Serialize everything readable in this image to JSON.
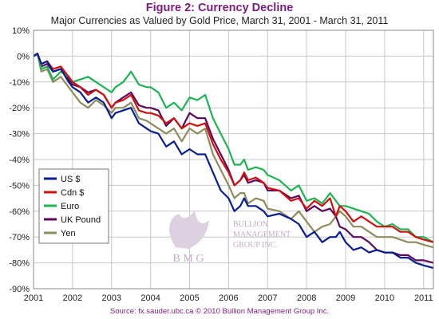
{
  "chart_data": {
    "type": "line",
    "title": "Figure 2: Currency Decline",
    "subtitle": "Major Currencies as Valued by Gold Price, March 31, 2001 - March 31, 2011",
    "xlabel": "",
    "ylabel": "",
    "x_ticks": [
      "2001",
      "2002",
      "2003",
      "2004",
      "2005",
      "2006",
      "2007",
      "2008",
      "2009",
      "2010",
      "2011"
    ],
    "y_ticks": [
      "10%",
      "0%",
      "-10%",
      "-20%",
      "-30%",
      "-40%",
      "-50%",
      "-60%",
      "-70%",
      "-80%",
      "-90%"
    ],
    "xlim": [
      2001.0,
      2011.25
    ],
    "ylim": [
      -90,
      10
    ],
    "grid": true,
    "legend_position": "left-middle",
    "series": [
      {
        "name": "US $",
        "color": "#0a1f8f",
        "x": [
          2001.0,
          2001.1,
          2001.2,
          2001.35,
          2001.5,
          2001.7,
          2001.9,
          2002.0,
          2002.2,
          2002.4,
          2002.6,
          2002.8,
          2003.0,
          2003.1,
          2003.3,
          2003.5,
          2003.7,
          2003.9,
          2004.0,
          2004.2,
          2004.4,
          2004.6,
          2004.8,
          2005.0,
          2005.2,
          2005.4,
          2005.6,
          2005.8,
          2006.0,
          2006.15,
          2006.3,
          2006.4,
          2006.5,
          2006.7,
          2006.9,
          2007.0,
          2007.3,
          2007.6,
          2007.8,
          2008.0,
          2008.2,
          2008.4,
          2008.6,
          2008.75,
          2008.85,
          2009.0,
          2009.2,
          2009.4,
          2009.6,
          2009.8,
          2010.0,
          2010.2,
          2010.4,
          2010.6,
          2010.8,
          2011.0,
          2011.25
        ],
        "values": [
          0,
          1,
          -3,
          -2,
          -6,
          -5,
          -10,
          -12,
          -14,
          -18,
          -16,
          -18,
          -24,
          -22,
          -21,
          -20,
          -26,
          -28,
          -29,
          -30,
          -35,
          -33,
          -38,
          -36,
          -38,
          -38,
          -45,
          -52,
          -55,
          -60,
          -58,
          -55,
          -58,
          -58,
          -60,
          -62,
          -61,
          -63,
          -65,
          -70,
          -68,
          -72,
          -70,
          -70,
          -68,
          -72,
          -75,
          -74,
          -76,
          -75,
          -76,
          -76,
          -78,
          -78,
          -80,
          -81,
          -82
        ]
      },
      {
        "name": "Cdn $",
        "color": "#d01010",
        "x": [
          2001.0,
          2001.1,
          2001.2,
          2001.35,
          2001.5,
          2001.7,
          2001.9,
          2002.0,
          2002.2,
          2002.4,
          2002.6,
          2002.8,
          2003.0,
          2003.1,
          2003.3,
          2003.5,
          2003.7,
          2003.9,
          2004.0,
          2004.2,
          2004.4,
          2004.6,
          2004.8,
          2005.0,
          2005.2,
          2005.4,
          2005.6,
          2005.8,
          2006.0,
          2006.15,
          2006.3,
          2006.4,
          2006.5,
          2006.7,
          2006.9,
          2007.0,
          2007.3,
          2007.6,
          2007.8,
          2008.0,
          2008.2,
          2008.4,
          2008.6,
          2008.75,
          2008.85,
          2009.0,
          2009.2,
          2009.4,
          2009.6,
          2009.8,
          2010.0,
          2010.2,
          2010.4,
          2010.6,
          2010.8,
          2011.0,
          2011.25
        ],
        "values": [
          0,
          1,
          -3,
          -2,
          -5,
          -4,
          -8,
          -10,
          -12,
          -15,
          -13,
          -15,
          -20,
          -18,
          -17,
          -15,
          -21,
          -22,
          -22,
          -23,
          -26,
          -24,
          -28,
          -26,
          -27,
          -26,
          -34,
          -40,
          -45,
          -50,
          -48,
          -45,
          -48,
          -47,
          -49,
          -51,
          -52,
          -56,
          -55,
          -59,
          -56,
          -58,
          -55,
          -62,
          -58,
          -60,
          -64,
          -62,
          -64,
          -66,
          -66,
          -66,
          -68,
          -68,
          -70,
          -71,
          -72
        ]
      },
      {
        "name": "Euro",
        "color": "#1eb454",
        "x": [
          2001.0,
          2001.1,
          2001.2,
          2001.35,
          2001.5,
          2001.7,
          2001.9,
          2002.0,
          2002.2,
          2002.4,
          2002.6,
          2002.8,
          2003.0,
          2003.1,
          2003.3,
          2003.5,
          2003.7,
          2003.9,
          2004.0,
          2004.2,
          2004.4,
          2004.6,
          2004.8,
          2005.0,
          2005.2,
          2005.4,
          2005.6,
          2005.8,
          2006.0,
          2006.15,
          2006.3,
          2006.4,
          2006.5,
          2006.7,
          2006.9,
          2007.0,
          2007.3,
          2007.6,
          2007.8,
          2008.0,
          2008.2,
          2008.4,
          2008.6,
          2008.75,
          2008.85,
          2009.0,
          2009.2,
          2009.4,
          2009.6,
          2009.8,
          2010.0,
          2010.2,
          2010.4,
          2010.6,
          2010.8,
          2011.0,
          2011.25
        ],
        "values": [
          0,
          1,
          -5,
          -4,
          -9,
          -6,
          -8,
          -10,
          -9,
          -8,
          -10,
          -12,
          -14,
          -12,
          -10,
          -6,
          -11,
          -12,
          -12,
          -14,
          -20,
          -18,
          -21,
          -16,
          -17,
          -15,
          -24,
          -30,
          -36,
          -42,
          -42,
          -40,
          -44,
          -43,
          -44,
          -46,
          -48,
          -52,
          -50,
          -56,
          -55,
          -57,
          -53,
          -56,
          -58,
          -58,
          -59,
          -60,
          -61,
          -64,
          -66,
          -65,
          -67,
          -67,
          -70,
          -70,
          -72
        ]
      },
      {
        "name": "UK Pound",
        "color": "#5c0a5e",
        "x": [
          2001.0,
          2001.1,
          2001.2,
          2001.35,
          2001.5,
          2001.7,
          2001.9,
          2002.0,
          2002.2,
          2002.4,
          2002.6,
          2002.8,
          2003.0,
          2003.1,
          2003.3,
          2003.5,
          2003.7,
          2003.9,
          2004.0,
          2004.2,
          2004.4,
          2004.6,
          2004.8,
          2005.0,
          2005.2,
          2005.4,
          2005.6,
          2005.8,
          2006.0,
          2006.15,
          2006.3,
          2006.4,
          2006.5,
          2006.7,
          2006.9,
          2007.0,
          2007.3,
          2007.6,
          2007.8,
          2008.0,
          2008.2,
          2008.4,
          2008.6,
          2008.75,
          2008.85,
          2009.0,
          2009.2,
          2009.4,
          2009.6,
          2009.8,
          2010.0,
          2010.2,
          2010.4,
          2010.6,
          2010.8,
          2011.0,
          2011.25
        ],
        "values": [
          0,
          1,
          -4,
          -3,
          -6,
          -5,
          -9,
          -11,
          -12,
          -14,
          -13,
          -15,
          -20,
          -18,
          -16,
          -14,
          -19,
          -20,
          -20,
          -21,
          -27,
          -24,
          -28,
          -22,
          -24,
          -24,
          -32,
          -38,
          -44,
          -50,
          -48,
          -46,
          -49,
          -48,
          -49,
          -52,
          -52,
          -55,
          -54,
          -60,
          -58,
          -60,
          -59,
          -62,
          -66,
          -67,
          -70,
          -70,
          -72,
          -75,
          -76,
          -76,
          -77,
          -77,
          -79,
          -79,
          -80
        ]
      },
      {
        "name": "Yen",
        "color": "#8f8c60",
        "x": [
          2001.0,
          2001.1,
          2001.2,
          2001.35,
          2001.5,
          2001.7,
          2001.9,
          2002.0,
          2002.2,
          2002.4,
          2002.6,
          2002.8,
          2003.0,
          2003.1,
          2003.3,
          2003.5,
          2003.7,
          2003.9,
          2004.0,
          2004.2,
          2004.4,
          2004.6,
          2004.8,
          2005.0,
          2005.2,
          2005.4,
          2005.6,
          2005.8,
          2006.0,
          2006.15,
          2006.3,
          2006.4,
          2006.5,
          2006.7,
          2006.9,
          2007.0,
          2007.3,
          2007.6,
          2007.8,
          2008.0,
          2008.2,
          2008.4,
          2008.6,
          2008.75,
          2008.85,
          2009.0,
          2009.2,
          2009.4,
          2009.6,
          2009.8,
          2010.0,
          2010.2,
          2010.4,
          2010.6,
          2010.8,
          2011.0,
          2011.25
        ],
        "values": [
          0,
          1,
          -6,
          -5,
          -10,
          -8,
          -12,
          -14,
          -18,
          -20,
          -17,
          -19,
          -22,
          -20,
          -20,
          -18,
          -24,
          -25,
          -26,
          -28,
          -30,
          -28,
          -33,
          -28,
          -30,
          -28,
          -38,
          -44,
          -50,
          -55,
          -53,
          -53,
          -57,
          -55,
          -56,
          -59,
          -60,
          -63,
          -60,
          -64,
          -68,
          -66,
          -65,
          -62,
          -60,
          -62,
          -66,
          -66,
          -68,
          -70,
          -70,
          -70,
          -71,
          -72,
          -72,
          -73,
          -74
        ]
      }
    ]
  },
  "footer": {
    "source": "Source: fx.sauder.ubc.ca © 2010 Bullion Management Group Inc."
  },
  "watermark": {
    "line1": "BULLION",
    "line2": "MANAGEMENT",
    "line3": "GROUP INC.",
    "initials": "B M G"
  }
}
